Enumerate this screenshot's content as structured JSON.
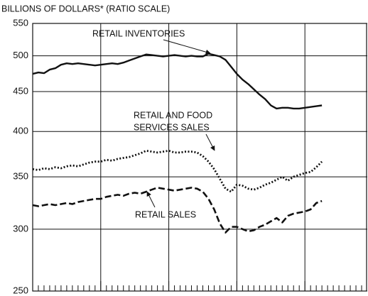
{
  "chart_data": {
    "type": "line",
    "y_axis_label": "BILLIONS OF DOLLARS* (RATIO SCALE)",
    "log_scale": true,
    "ylim": [
      250,
      550
    ],
    "yticks": [
      250,
      300,
      350,
      400,
      450,
      500,
      550
    ],
    "grid": true,
    "xgrid_interval": 12,
    "categories": [
      null,
      null,
      null,
      null,
      null,
      null,
      null,
      null,
      null,
      null,
      null,
      null,
      null,
      null,
      null,
      null,
      null,
      null,
      null,
      null,
      null,
      null,
      null,
      null,
      null,
      null,
      null,
      null,
      null,
      null,
      null,
      null,
      null,
      null,
      null,
      null,
      null,
      null,
      null,
      null,
      null,
      null,
      null,
      null,
      null,
      null,
      null,
      null,
      null,
      null,
      null,
      null,
      null,
      null,
      null,
      null,
      null,
      null,
      null
    ],
    "series": [
      {
        "label_lines": [
          "RETAIL INVENTORIES"
        ],
        "color": "#111111",
        "style": "solid",
        "values": [
          474,
          476,
          475,
          480,
          482,
          487,
          489,
          488,
          489,
          488,
          487,
          486,
          487,
          488,
          489,
          488,
          490,
          493,
          496,
          499,
          502,
          501,
          500,
          499,
          500,
          501,
          500,
          499,
          500,
          499,
          499,
          503,
          501,
          499,
          494,
          484,
          474,
          466,
          460,
          453,
          446,
          440,
          432,
          428,
          429,
          429,
          428,
          428,
          429,
          430,
          431,
          432,
          null,
          null,
          null,
          null,
          null,
          null,
          null
        ]
      },
      {
        "label_lines": [
          "RETAIL AND FOOD",
          "SERVICES SALES"
        ],
        "color": "#111111",
        "style": "dotted",
        "values": [
          358,
          357,
          359,
          358,
          360,
          359,
          361,
          362,
          361,
          363,
          365,
          366,
          366,
          368,
          367,
          369,
          370,
          371,
          373,
          375,
          378,
          377,
          376,
          377,
          378,
          376,
          376,
          377,
          377,
          376,
          372,
          366,
          358,
          348,
          338,
          335,
          342,
          341,
          338,
          337,
          339,
          342,
          344,
          347,
          350,
          346,
          350,
          352,
          354,
          355,
          360,
          366,
          null,
          null,
          null,
          null,
          null,
          null,
          null
        ]
      },
      {
        "label_lines": [
          "RETAIL SALES"
        ],
        "color": "#111111",
        "style": "dashed",
        "values": [
          322,
          321,
          322,
          323,
          322,
          323,
          324,
          323,
          325,
          326,
          327,
          328,
          328,
          330,
          331,
          332,
          331,
          333,
          334,
          333,
          335,
          337,
          339,
          338,
          337,
          336,
          337,
          338,
          339,
          338,
          335,
          328,
          318,
          305,
          297,
          302,
          302,
          300,
          298,
          299,
          302,
          304,
          307,
          310,
          306,
          312,
          314,
          315,
          316,
          318,
          324,
          326,
          null,
          null,
          null,
          null,
          null,
          null,
          null
        ]
      }
    ]
  }
}
